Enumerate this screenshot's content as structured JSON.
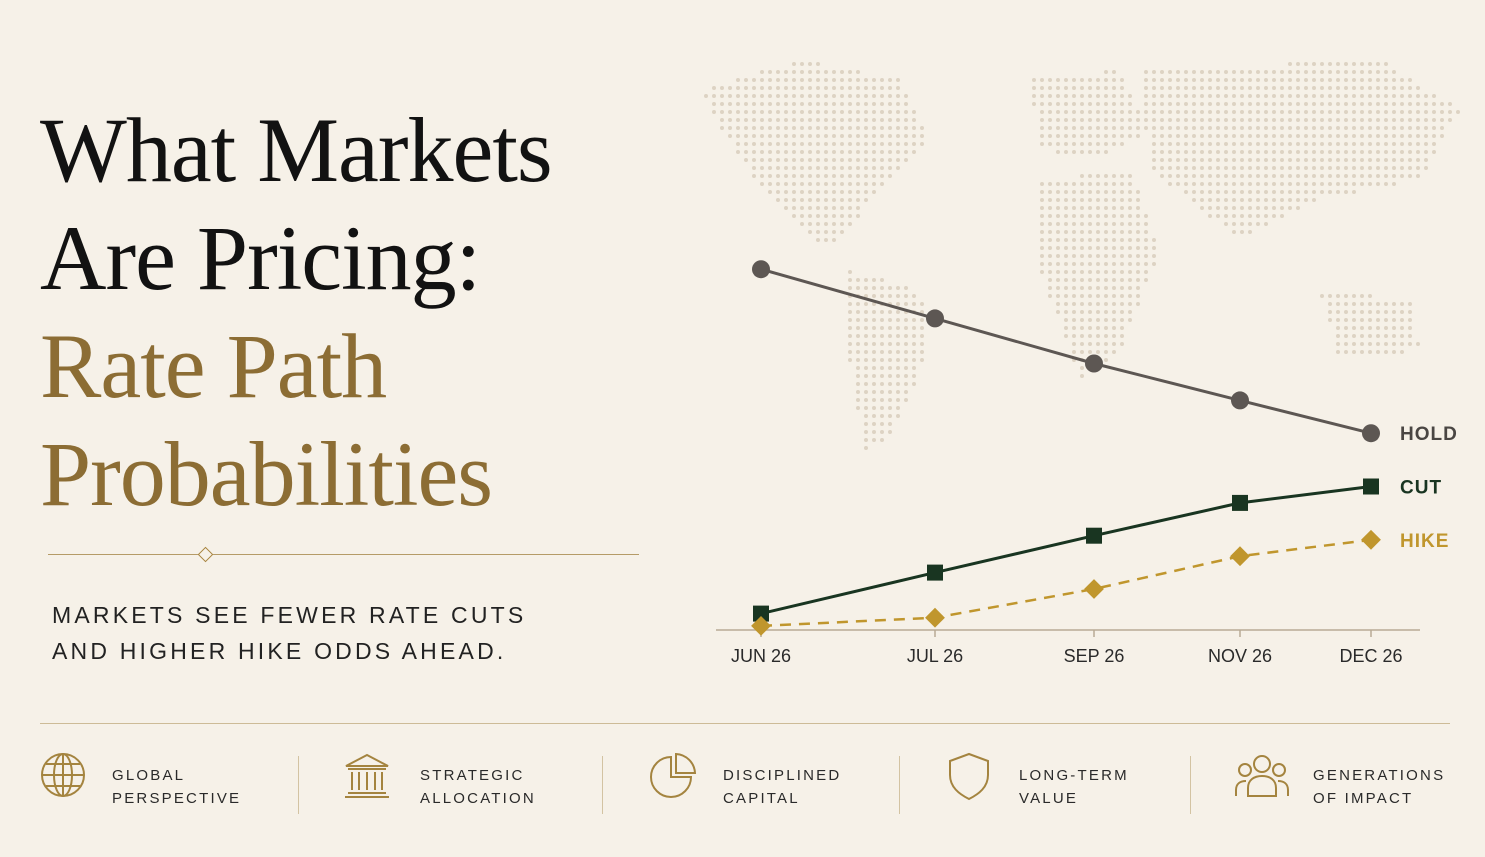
{
  "headline": {
    "line1": "What Markets",
    "line2": "Are Pricing:",
    "line3": "Rate Path",
    "line4": "Probabilities"
  },
  "subtitle": {
    "line1": "MARKETS SEE FEWER RATE CUTS",
    "line2": "AND HIGHER HIKE ODDS AHEAD."
  },
  "colors": {
    "background": "#f6f1e8",
    "gold": "#8c6d34",
    "hold": "#5d5753",
    "cut": "#193521",
    "hike": "#c0962d"
  },
  "chart_data": {
    "type": "line",
    "categories": [
      "JUN 26",
      "JUL 26",
      "SEP 26",
      "NOV 26",
      "DEC 26"
    ],
    "series": [
      {
        "name": "HOLD",
        "values": [
          88,
          76,
          65,
          56,
          48
        ],
        "marker": "circle",
        "line_style": "solid"
      },
      {
        "name": "CUT",
        "values": [
          4,
          14,
          23,
          31,
          35
        ],
        "marker": "square",
        "line_style": "solid"
      },
      {
        "name": "HIKE",
        "values": [
          1,
          3,
          10,
          18,
          22
        ],
        "marker": "diamond",
        "line_style": "dashed"
      }
    ],
    "ylim": [
      0,
      100
    ],
    "y_axis_shown": false,
    "grid": false,
    "legend": "direct labels at right end of each line",
    "background_decoration": "dotted world map"
  },
  "footer": {
    "items": [
      {
        "icon": "globe-icon",
        "line1": "GLOBAL",
        "line2": "PERSPECTIVE"
      },
      {
        "icon": "bank-icon",
        "line1": "STRATEGIC",
        "line2": "ALLOCATION"
      },
      {
        "icon": "pie-chart-icon",
        "line1": "DISCIPLINED",
        "line2": "CAPITAL"
      },
      {
        "icon": "shield-icon",
        "line1": "LONG-TERM",
        "line2": "VALUE"
      },
      {
        "icon": "people-icon",
        "line1": "GENERATIONS",
        "line2": "OF IMPACT"
      }
    ]
  }
}
